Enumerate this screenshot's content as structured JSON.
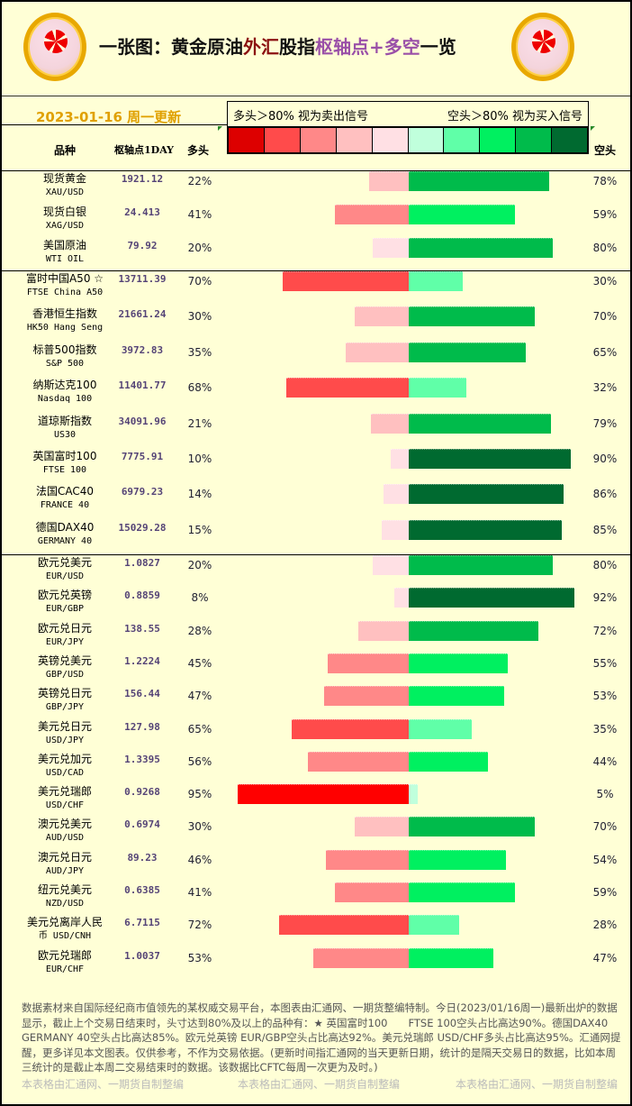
{
  "header": {
    "title_parts": [
      "一张图：黄金原油",
      "外汇",
      "股指",
      "枢轴点+多空",
      "一览"
    ],
    "date": "2023-01-16 周一更新"
  },
  "legend": {
    "long_note": "多头＞80% 视为卖出信号",
    "short_note": "空头＞80% 视为买入信号",
    "colors": [
      "#dd0000",
      "#ff4b4b",
      "#ff8888",
      "#ffc0c0",
      "#ffe0e4",
      "#c0ffdc",
      "#60ffa8",
      "#00f060",
      "#00bb4b",
      "#006a30"
    ]
  },
  "columns": {
    "name": "品种",
    "pivot": "枢轴点1DAY",
    "long": "多头",
    "short": "空头"
  },
  "sections": [
    [
      {
        "cn": "现货黄金",
        "en": "XAU/USD",
        "pivot": "1921.12",
        "long": 22,
        "short": 78
      },
      {
        "cn": "现货白银",
        "en": "XAG/USD",
        "pivot": "24.413",
        "long": 41,
        "short": 59
      },
      {
        "cn": "美国原油",
        "en": "WTI OIL",
        "pivot": "79.92",
        "long": 20,
        "short": 80
      }
    ],
    [
      {
        "cn": "富时中国A50 ☆",
        "en": "FTSE China A50",
        "pivot": "13711.39",
        "long": 70,
        "short": 30
      },
      {
        "cn": "香港恒生指数",
        "en": "HK50 Hang Seng",
        "pivot": "21661.24",
        "long": 30,
        "short": 70
      },
      {
        "cn": "标普500指数",
        "en": "S&P 500",
        "pivot": "3972.83",
        "long": 35,
        "short": 65
      },
      {
        "cn": "纳斯达克100",
        "en": "Nasdaq 100",
        "pivot": "11401.77",
        "long": 68,
        "short": 32
      },
      {
        "cn": "道琼斯指数",
        "en": "US30",
        "pivot": "34091.96",
        "long": 21,
        "short": 79
      },
      {
        "cn": "英国富时100",
        "en": "FTSE 100",
        "pivot": "7775.91",
        "long": 10,
        "short": 90
      },
      {
        "cn": "法国CAC40",
        "en": "FRANCE 40",
        "pivot": "6979.23",
        "long": 14,
        "short": 86
      },
      {
        "cn": "德国DAX40",
        "en": "GERMANY 40",
        "pivot": "15029.28",
        "long": 15,
        "short": 85
      }
    ],
    [
      {
        "cn": "欧元兑美元",
        "en": "EUR/USD",
        "pivot": "1.0827",
        "long": 20,
        "short": 80
      },
      {
        "cn": "欧元兑英镑",
        "en": "EUR/GBP",
        "pivot": "0.8859",
        "long": 8,
        "short": 92
      },
      {
        "cn": "欧元兑日元",
        "en": "EUR/JPY",
        "pivot": "138.55",
        "long": 28,
        "short": 72
      },
      {
        "cn": "英镑兑美元",
        "en": "GBP/USD",
        "pivot": "1.2224",
        "long": 45,
        "short": 55
      },
      {
        "cn": "英镑兑日元",
        "en": "GBP/JPY",
        "pivot": "156.44",
        "long": 47,
        "short": 53
      },
      {
        "cn": "美元兑日元",
        "en": "USD/JPY",
        "pivot": "127.98",
        "long": 65,
        "short": 35
      },
      {
        "cn": "美元兑加元",
        "en": "USD/CAD",
        "pivot": "1.3395",
        "long": 56,
        "short": 44
      },
      {
        "cn": "美元兑瑞郎",
        "en": "USD/CHF",
        "pivot": "0.9268",
        "long": 95,
        "short": 5
      },
      {
        "cn": "澳元兑美元",
        "en": "AUD/USD",
        "pivot": "0.6974",
        "long": 30,
        "short": 70
      },
      {
        "cn": "澳元兑日元",
        "en": "AUD/JPY",
        "pivot": "89.23",
        "long": 46,
        "short": 54
      },
      {
        "cn": "纽元兑美元",
        "en": "NZD/USD",
        "pivot": "0.6385",
        "long": 41,
        "short": 59
      },
      {
        "cn": "美元兑离岸人民",
        "en": "币  USD/CNH",
        "pivot": "6.7115",
        "long": 72,
        "short": 28
      },
      {
        "cn": "欧元兑瑞郎",
        "en": "EUR/CHF",
        "pivot": "1.0037",
        "long": 53,
        "short": 47
      }
    ]
  ],
  "footer": {
    "text": "数据素材来自国际经纪商市值领先的某权威交易平台，本图表由汇通网、一期货整编特制。今日(2023/01/16周一)最新出炉的数据显示，截止上个交易日结束时，头寸达到80%及以上的品种有：★ 英国富时100　　FTSE 100空头占比高达90%。德国DAX40　　GERMANY 40空头占比高达85%。欧元兑英镑 EUR/GBP空头占比高达92%。美元兑瑞郎 USD/CHF多头占比高达95%。汇通网提醒，更多详见本文图表。仅供参考，不作为交易依据。(更新时间指汇通网的当天更新日期，统计的是隔天交易日的数据，比如本周三统计的是截止本周二交易结束时的数据。该数据比CFTC每周一次更为及时。)",
    "watermark": "本表格由汇通网、一期货自制整编"
  }
}
